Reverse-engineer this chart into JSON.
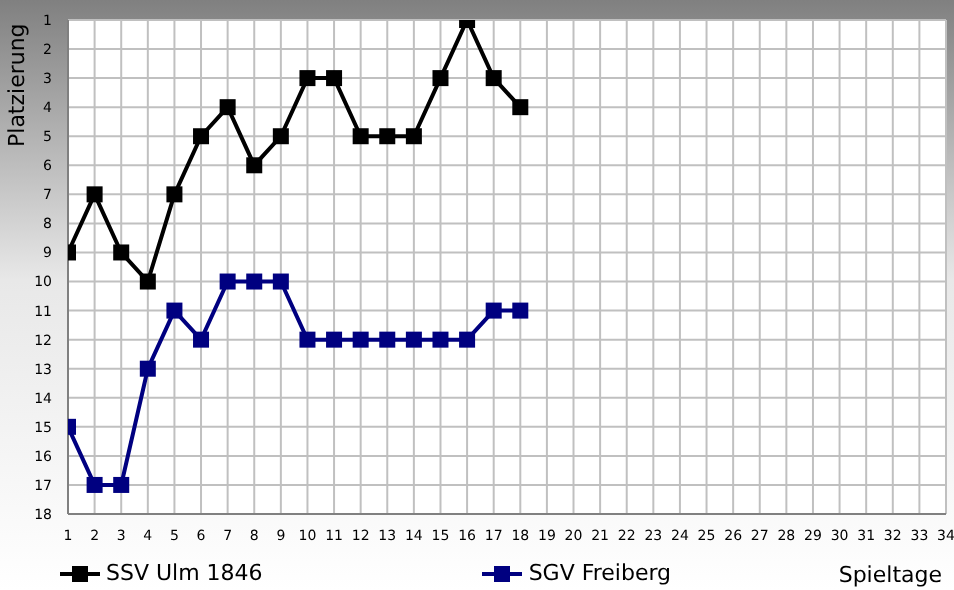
{
  "chart_data": {
    "type": "line",
    "ylabel": "Platzierung",
    "xlabel": "Spieltage",
    "x": [
      1,
      2,
      3,
      4,
      5,
      6,
      7,
      8,
      9,
      10,
      11,
      12,
      13,
      14,
      15,
      16,
      17,
      18
    ],
    "series": [
      {
        "name": "SSV Ulm 1846",
        "color": "#000000",
        "values": [
          9,
          7,
          9,
          10,
          7,
          5,
          4,
          6,
          5,
          3,
          3,
          5,
          5,
          5,
          3,
          1,
          3,
          4
        ]
      },
      {
        "name": "SGV Freiberg",
        "color": "#000080",
        "values": [
          15,
          17,
          17,
          13,
          11,
          12,
          10,
          10,
          10,
          12,
          12,
          12,
          12,
          12,
          12,
          12,
          11,
          11
        ]
      }
    ],
    "xlim": [
      1,
      34
    ],
    "xticks": [
      1,
      2,
      3,
      4,
      5,
      6,
      7,
      8,
      9,
      10,
      11,
      12,
      13,
      14,
      15,
      16,
      17,
      18,
      19,
      20,
      21,
      22,
      23,
      24,
      25,
      26,
      27,
      28,
      29,
      30,
      31,
      32,
      33,
      34
    ],
    "ylim": [
      18,
      1
    ],
    "yticks": [
      1,
      2,
      3,
      4,
      5,
      6,
      7,
      8,
      9,
      10,
      11,
      12,
      13,
      14,
      15,
      16,
      17,
      18
    ],
    "grid": true,
    "legend": "bottom",
    "marker": "square",
    "line_style": "solid"
  }
}
